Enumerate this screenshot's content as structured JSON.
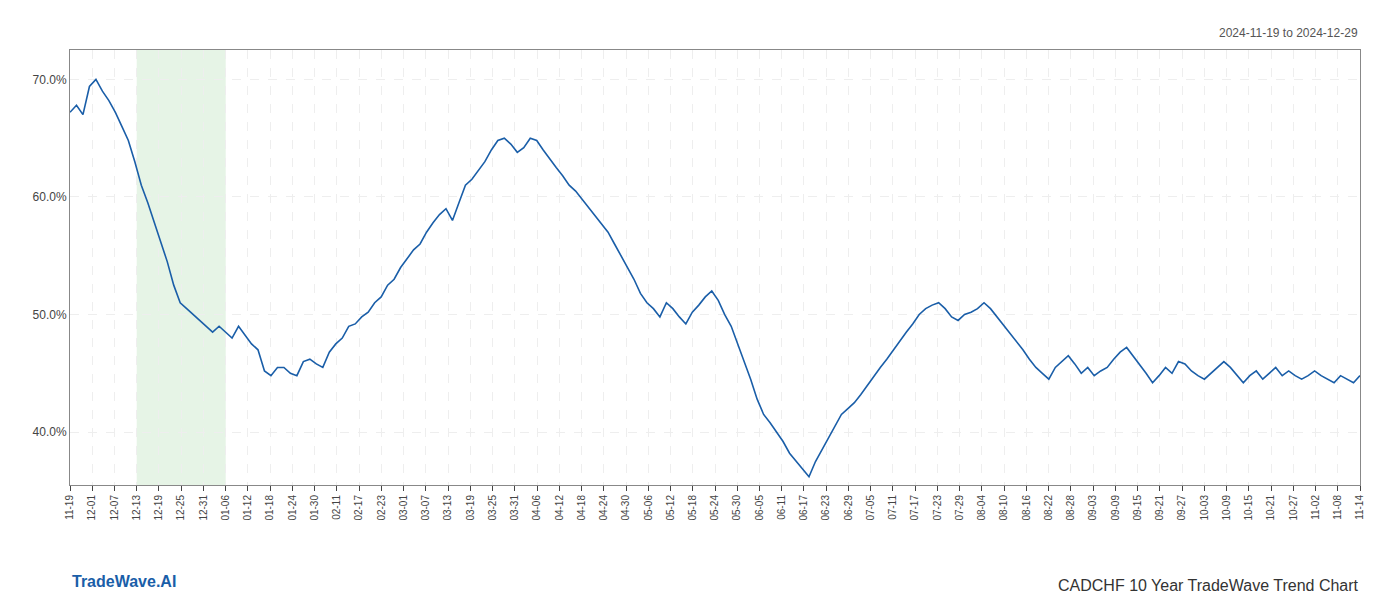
{
  "chart_data": {
    "type": "line",
    "title": "CADCHF 10 Year TradeWave Trend Chart",
    "subtitle": "2024-11-19 to 2024-12-29",
    "annotations": [
      {
        "text": "TradeWave.AI",
        "color": "#1a5ea8"
      }
    ],
    "color": "#1a5ea8",
    "values": [
      0.672,
      0.678,
      0.67,
      0.694,
      0.7,
      0.69,
      0.682,
      0.672,
      0.66,
      0.648,
      0.63,
      0.61,
      0.595,
      0.578,
      0.56,
      0.545,
      0.525,
      0.51,
      0.505,
      0.5,
      0.495,
      0.49,
      0.485,
      0.49,
      0.485,
      0.48,
      0.49,
      0.482,
      0.475,
      0.47,
      0.452,
      0.448,
      0.455,
      0.455,
      0.45,
      0.448,
      0.46,
      0.462,
      0.458,
      0.455,
      0.468,
      0.475,
      0.48,
      0.49,
      0.492,
      0.498,
      0.502,
      0.51,
      0.515,
      0.525,
      0.53,
      0.54,
      0.548,
      0.555,
      0.56,
      0.57,
      0.578,
      0.585,
      0.59,
      0.58,
      0.595,
      0.61,
      0.615,
      0.622,
      0.63,
      0.64,
      0.648,
      0.65,
      0.645,
      0.638,
      0.642,
      0.65,
      0.648,
      0.64,
      0.632,
      0.625,
      0.618,
      0.61,
      0.605,
      0.598,
      0.592,
      0.585,
      0.578,
      0.57,
      0.56,
      0.55,
      0.54,
      0.53,
      0.518,
      0.51,
      0.505,
      0.498,
      0.51,
      0.505,
      0.498,
      0.492,
      0.502,
      0.508,
      0.515,
      0.52,
      0.512,
      0.5,
      0.49,
      0.475,
      0.46,
      0.445,
      0.428,
      0.415,
      0.408,
      0.4,
      0.392,
      0.382,
      0.375,
      0.368,
      0.362,
      0.375,
      0.385,
      0.395,
      0.405,
      0.415,
      0.42,
      0.425,
      0.432,
      0.44,
      0.448,
      0.455,
      0.462,
      0.47,
      0.478,
      0.485,
      0.492,
      0.5,
      0.505,
      0.508,
      0.51,
      0.505,
      0.498,
      0.495,
      0.5,
      0.502,
      0.505,
      0.51,
      0.505,
      0.498,
      0.492,
      0.485,
      0.478,
      0.47,
      0.462,
      0.455,
      0.45,
      0.445,
      0.455,
      0.46,
      0.465,
      0.458,
      0.45,
      0.455,
      0.448,
      0.452,
      0.455,
      0.462,
      0.468,
      0.472,
      0.465,
      0.458,
      0.45,
      0.442,
      0.448,
      0.455,
      0.45,
      0.46,
      0.458,
      0.452,
      0.448,
      0.445,
      0.45,
      0.455,
      0.46,
      0.455,
      0.448,
      0.442,
      0.448,
      0.452,
      0.445,
      0.45,
      0.455,
      0.448,
      0.452,
      0.448,
      0.445,
      0.448,
      0.452,
      0.448,
      0.445,
      0.442,
      0.448,
      0.445,
      0.442,
      0.448
    ],
    "xlim": [
      0,
      199
    ],
    "xticks": [
      {
        "value": 0,
        "label": "11-19"
      },
      {
        "value": 3.4310344827586206,
        "label": "12-01"
      },
      {
        "value": 6.862068965517241,
        "label": "12-07"
      },
      {
        "value": 10.293103448275861,
        "label": "12-13"
      },
      {
        "value": 13.724137931034482,
        "label": "12-19"
      },
      {
        "value": 17.155172413793103,
        "label": "12-25"
      },
      {
        "value": 20.586206896551722,
        "label": "12-31"
      },
      {
        "value": 24.017241379310345,
        "label": "01-06"
      },
      {
        "value": 27.448275862068964,
        "label": "01-12"
      },
      {
        "value": 30.879310344827587,
        "label": "01-18"
      },
      {
        "value": 34.310344827586206,
        "label": "01-24"
      },
      {
        "value": 37.741379310344826,
        "label": "01-30"
      },
      {
        "value": 41.172413793103445,
        "label": "02-11"
      },
      {
        "value": 44.60344827586207,
        "label": "02-17"
      },
      {
        "value": 48.03448275862069,
        "label": "02-23"
      },
      {
        "value": 51.46551724137931,
        "label": "03-01"
      },
      {
        "value": 54.89655172413793,
        "label": "03-07"
      },
      {
        "value": 58.327586206896555,
        "label": "03-13"
      },
      {
        "value": 61.758620689655174,
        "label": "03-19"
      },
      {
        "value": 65.1896551724138,
        "label": "03-25"
      },
      {
        "value": 68.62068965517241,
        "label": "03-31"
      },
      {
        "value": 72.05172413793103,
        "label": "04-06"
      },
      {
        "value": 75.48275862068965,
        "label": "04-12"
      },
      {
        "value": 78.91379310344827,
        "label": "04-18"
      },
      {
        "value": 82.34482758620689,
        "label": "04-24"
      },
      {
        "value": 85.77586206896552,
        "label": "04-30"
      },
      {
        "value": 89.20689655172414,
        "label": "05-06"
      },
      {
        "value": 92.63793103448276,
        "label": "05-12"
      },
      {
        "value": 96.06896551724138,
        "label": "05-18"
      },
      {
        "value": 99.5,
        "label": "05-24"
      },
      {
        "value": 102.93103448275862,
        "label": "05-30"
      },
      {
        "value": 106.36206896551724,
        "label": "06-05"
      },
      {
        "value": 109.79310344827586,
        "label": "06-11"
      },
      {
        "value": 113.22413793103448,
        "label": "06-17"
      },
      {
        "value": 116.6551724137931,
        "label": "06-23"
      },
      {
        "value": 120.08620689655173,
        "label": "06-29"
      },
      {
        "value": 123.51724137931035,
        "label": "07-05"
      },
      {
        "value": 126.94827586206897,
        "label": "07-11"
      },
      {
        "value": 130.3793103448276,
        "label": "07-17"
      },
      {
        "value": 133.8103448275862,
        "label": "07-23"
      },
      {
        "value": 137.24137931034483,
        "label": "07-29"
      },
      {
        "value": 140.67241379310346,
        "label": "08-04"
      },
      {
        "value": 144.10344827586206,
        "label": "08-10"
      },
      {
        "value": 147.5344827586207,
        "label": "08-16"
      },
      {
        "value": 150.9655172413793,
        "label": "08-22"
      },
      {
        "value": 154.39655172413794,
        "label": "08-28"
      },
      {
        "value": 157.82758620689654,
        "label": "09-03"
      },
      {
        "value": 161.25862068965517,
        "label": "09-09"
      },
      {
        "value": 164.68965517241378,
        "label": "09-15"
      },
      {
        "value": 168.1206896551724,
        "label": "09-21"
      },
      {
        "value": 171.55172413793105,
        "label": "09-27"
      },
      {
        "value": 174.98275862068965,
        "label": "10-03"
      },
      {
        "value": 178.41379310344828,
        "label": "10-09"
      },
      {
        "value": 181.8448275862069,
        "label": "10-15"
      },
      {
        "value": 185.27586206896552,
        "label": "10-21"
      },
      {
        "value": 188.70689655172413,
        "label": "10-27"
      },
      {
        "value": 192.13793103448276,
        "label": "11-02"
      },
      {
        "value": 195.5689655172414,
        "label": "11-08"
      },
      {
        "value": 199,
        "label": "11-14"
      }
    ],
    "ylim": [
      0.355,
      0.725
    ],
    "yticks": [
      {
        "value": 0.4,
        "label": "40.0%"
      },
      {
        "value": 0.5,
        "label": "50.0%"
      },
      {
        "value": 0.6,
        "label": "60.0%"
      },
      {
        "value": 0.7,
        "label": "70.0%"
      }
    ],
    "grid": true,
    "shade": {
      "start": "12-13",
      "end": "01-06",
      "color": "#c8e6c8"
    }
  }
}
